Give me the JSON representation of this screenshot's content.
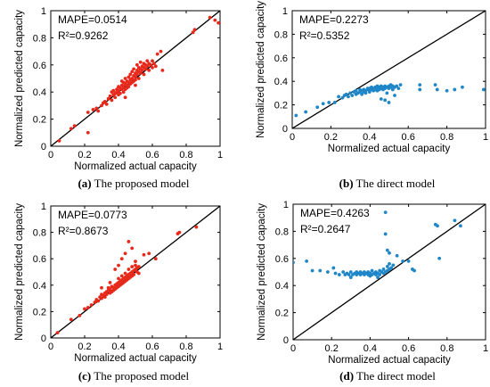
{
  "chart_data": [
    {
      "type": "scatter",
      "caption_letter": "(a)",
      "caption_text": "The proposed model",
      "xlabel": "Normalized actual capacity",
      "ylabel": "Normalized predicted capacity",
      "xlim": [
        0,
        1
      ],
      "ylim": [
        0,
        1
      ],
      "xticks": [
        "0",
        "0.2",
        "0.4",
        "0.6",
        "0.8",
        "1"
      ],
      "yticks": [
        "0",
        "0.2",
        "0.4",
        "0.6",
        "0.8",
        "1"
      ],
      "annotations": [
        "MAPE=0.0514",
        "R²=0.9262"
      ],
      "reference_line": "y = x",
      "grid": false,
      "colors": {
        "points": "#e8281a",
        "line": "#000000"
      },
      "points": [
        [
          0.05,
          0.04
        ],
        [
          0.12,
          0.13
        ],
        [
          0.14,
          0.15
        ],
        [
          0.22,
          0.1
        ],
        [
          0.22,
          0.25
        ],
        [
          0.25,
          0.27
        ],
        [
          0.27,
          0.28
        ],
        [
          0.28,
          0.26
        ],
        [
          0.3,
          0.3
        ],
        [
          0.31,
          0.32
        ],
        [
          0.32,
          0.33
        ],
        [
          0.33,
          0.31
        ],
        [
          0.34,
          0.35
        ],
        [
          0.35,
          0.37
        ],
        [
          0.36,
          0.34
        ],
        [
          0.37,
          0.38
        ],
        [
          0.37,
          0.41
        ],
        [
          0.38,
          0.36
        ],
        [
          0.38,
          0.39
        ],
        [
          0.39,
          0.4
        ],
        [
          0.39,
          0.42
        ],
        [
          0.4,
          0.38
        ],
        [
          0.4,
          0.41
        ],
        [
          0.4,
          0.44
        ],
        [
          0.41,
          0.43
        ],
        [
          0.41,
          0.39
        ],
        [
          0.42,
          0.45
        ],
        [
          0.42,
          0.42
        ],
        [
          0.42,
          0.48
        ],
        [
          0.43,
          0.4
        ],
        [
          0.43,
          0.44
        ],
        [
          0.43,
          0.47
        ],
        [
          0.44,
          0.46
        ],
        [
          0.44,
          0.42
        ],
        [
          0.44,
          0.5
        ],
        [
          0.45,
          0.45
        ],
        [
          0.45,
          0.48
        ],
        [
          0.45,
          0.43
        ],
        [
          0.46,
          0.47
        ],
        [
          0.46,
          0.51
        ],
        [
          0.46,
          0.44
        ],
        [
          0.47,
          0.49
        ],
        [
          0.47,
          0.46
        ],
        [
          0.47,
          0.53
        ],
        [
          0.48,
          0.5
        ],
        [
          0.48,
          0.47
        ],
        [
          0.48,
          0.55
        ],
        [
          0.49,
          0.52
        ],
        [
          0.49,
          0.48
        ],
        [
          0.49,
          0.57
        ],
        [
          0.5,
          0.51
        ],
        [
          0.5,
          0.54
        ],
        [
          0.5,
          0.49
        ],
        [
          0.51,
          0.53
        ],
        [
          0.51,
          0.56
        ],
        [
          0.51,
          0.6
        ],
        [
          0.52,
          0.5
        ],
        [
          0.52,
          0.55
        ],
        [
          0.52,
          0.58
        ],
        [
          0.53,
          0.54
        ],
        [
          0.53,
          0.57
        ],
        [
          0.53,
          0.62
        ],
        [
          0.54,
          0.56
        ],
        [
          0.54,
          0.59
        ],
        [
          0.55,
          0.58
        ],
        [
          0.55,
          0.53
        ],
        [
          0.55,
          0.61
        ],
        [
          0.56,
          0.57
        ],
        [
          0.56,
          0.6
        ],
        [
          0.57,
          0.59
        ],
        [
          0.57,
          0.63
        ],
        [
          0.58,
          0.56
        ],
        [
          0.58,
          0.61
        ],
        [
          0.59,
          0.6
        ],
        [
          0.6,
          0.58
        ],
        [
          0.6,
          0.63
        ],
        [
          0.61,
          0.61
        ],
        [
          0.62,
          0.59
        ],
        [
          0.44,
          0.36
        ],
        [
          0.5,
          0.45
        ],
        [
          0.36,
          0.4
        ],
        [
          0.63,
          0.68
        ],
        [
          0.65,
          0.7
        ],
        [
          0.66,
          0.56
        ],
        [
          0.84,
          0.84
        ],
        [
          0.85,
          0.86
        ],
        [
          0.94,
          0.95
        ],
        [
          0.99,
          0.91
        ],
        [
          0.97,
          0.93
        ]
      ]
    },
    {
      "type": "scatter",
      "caption_letter": "(b)",
      "caption_text": "The direct model",
      "xlabel": "Normalized actual capacity",
      "ylabel": "Normalized predicted capacity",
      "xlim": [
        0,
        1
      ],
      "ylim": [
        0,
        1
      ],
      "xticks": [
        "0",
        "0.2",
        "0.4",
        "0.6",
        "0.8",
        "1"
      ],
      "yticks": [
        "0",
        "0.2",
        "0.4",
        "0.6",
        "0.8",
        "1"
      ],
      "annotations": [
        "MAPE=0.2273",
        "R²=0.5352"
      ],
      "reference_line": "y = x",
      "grid": false,
      "colors": {
        "points": "#1f86c8",
        "line": "#000000"
      },
      "points": [
        [
          0.02,
          0.11
        ],
        [
          0.07,
          0.14
        ],
        [
          0.13,
          0.18
        ],
        [
          0.16,
          0.21
        ],
        [
          0.19,
          0.22
        ],
        [
          0.22,
          0.22
        ],
        [
          0.24,
          0.27
        ],
        [
          0.26,
          0.26
        ],
        [
          0.27,
          0.28
        ],
        [
          0.28,
          0.29
        ],
        [
          0.29,
          0.27
        ],
        [
          0.3,
          0.3
        ],
        [
          0.31,
          0.28
        ],
        [
          0.32,
          0.31
        ],
        [
          0.33,
          0.29
        ],
        [
          0.33,
          0.32
        ],
        [
          0.34,
          0.3
        ],
        [
          0.35,
          0.31
        ],
        [
          0.35,
          0.33
        ],
        [
          0.36,
          0.29
        ],
        [
          0.36,
          0.32
        ],
        [
          0.37,
          0.31
        ],
        [
          0.37,
          0.33
        ],
        [
          0.38,
          0.32
        ],
        [
          0.38,
          0.3
        ],
        [
          0.39,
          0.33
        ],
        [
          0.39,
          0.34
        ],
        [
          0.4,
          0.32
        ],
        [
          0.4,
          0.31
        ],
        [
          0.4,
          0.34
        ],
        [
          0.41,
          0.33
        ],
        [
          0.41,
          0.35
        ],
        [
          0.42,
          0.32
        ],
        [
          0.42,
          0.34
        ],
        [
          0.43,
          0.33
        ],
        [
          0.43,
          0.35
        ],
        [
          0.44,
          0.34
        ],
        [
          0.44,
          0.36
        ],
        [
          0.44,
          0.32
        ],
        [
          0.45,
          0.33
        ],
        [
          0.45,
          0.35
        ],
        [
          0.46,
          0.34
        ],
        [
          0.46,
          0.36
        ],
        [
          0.47,
          0.33
        ],
        [
          0.47,
          0.35
        ],
        [
          0.48,
          0.34
        ],
        [
          0.48,
          0.36
        ],
        [
          0.49,
          0.35
        ],
        [
          0.49,
          0.3
        ],
        [
          0.5,
          0.36
        ],
        [
          0.5,
          0.34
        ],
        [
          0.51,
          0.35
        ],
        [
          0.51,
          0.37
        ],
        [
          0.52,
          0.36
        ],
        [
          0.52,
          0.33
        ],
        [
          0.53,
          0.35
        ],
        [
          0.54,
          0.36
        ],
        [
          0.55,
          0.34
        ],
        [
          0.56,
          0.37
        ],
        [
          0.46,
          0.25
        ],
        [
          0.48,
          0.24
        ],
        [
          0.5,
          0.22
        ],
        [
          0.53,
          0.28
        ],
        [
          0.66,
          0.37
        ],
        [
          0.66,
          0.33
        ],
        [
          0.74,
          0.37
        ],
        [
          0.75,
          0.33
        ],
        [
          0.8,
          0.32
        ],
        [
          0.84,
          0.33
        ],
        [
          0.88,
          0.35
        ],
        [
          0.99,
          0.33
        ]
      ]
    },
    {
      "type": "scatter",
      "caption_letter": "(c)",
      "caption_text": "The proposed model",
      "xlabel": "Normalized actual capacity",
      "ylabel": "Normalized predicted capacity",
      "xlim": [
        0,
        1
      ],
      "ylim": [
        0,
        1
      ],
      "xticks": [
        "0",
        "0.2",
        "0.4",
        "0.6",
        "0.8",
        "1"
      ],
      "yticks": [
        "0",
        "0.2",
        "0.4",
        "0.6",
        "0.8",
        "1"
      ],
      "annotations": [
        "MAPE=0.0773",
        "R²=0.8673"
      ],
      "reference_line": "y = x",
      "grid": false,
      "colors": {
        "points": "#e8281a",
        "line": "#000000"
      },
      "points": [
        [
          0.04,
          0.04
        ],
        [
          0.12,
          0.14
        ],
        [
          0.17,
          0.17
        ],
        [
          0.2,
          0.22
        ],
        [
          0.22,
          0.23
        ],
        [
          0.24,
          0.25
        ],
        [
          0.26,
          0.27
        ],
        [
          0.27,
          0.29
        ],
        [
          0.28,
          0.28
        ],
        [
          0.29,
          0.31
        ],
        [
          0.3,
          0.3
        ],
        [
          0.3,
          0.33
        ],
        [
          0.31,
          0.32
        ],
        [
          0.32,
          0.34
        ],
        [
          0.32,
          0.31
        ],
        [
          0.33,
          0.35
        ],
        [
          0.33,
          0.33
        ],
        [
          0.34,
          0.36
        ],
        [
          0.34,
          0.38
        ],
        [
          0.35,
          0.34
        ],
        [
          0.35,
          0.37
        ],
        [
          0.36,
          0.39
        ],
        [
          0.36,
          0.35
        ],
        [
          0.37,
          0.38
        ],
        [
          0.37,
          0.36
        ],
        [
          0.38,
          0.4
        ],
        [
          0.38,
          0.37
        ],
        [
          0.39,
          0.41
        ],
        [
          0.39,
          0.38
        ],
        [
          0.4,
          0.42
        ],
        [
          0.4,
          0.39
        ],
        [
          0.4,
          0.45
        ],
        [
          0.41,
          0.4
        ],
        [
          0.41,
          0.43
        ],
        [
          0.42,
          0.44
        ],
        [
          0.42,
          0.41
        ],
        [
          0.42,
          0.47
        ],
        [
          0.43,
          0.45
        ],
        [
          0.43,
          0.42
        ],
        [
          0.44,
          0.46
        ],
        [
          0.44,
          0.43
        ],
        [
          0.44,
          0.49
        ],
        [
          0.45,
          0.47
        ],
        [
          0.45,
          0.44
        ],
        [
          0.46,
          0.48
        ],
        [
          0.46,
          0.45
        ],
        [
          0.46,
          0.52
        ],
        [
          0.47,
          0.49
        ],
        [
          0.47,
          0.46
        ],
        [
          0.48,
          0.5
        ],
        [
          0.48,
          0.47
        ],
        [
          0.48,
          0.54
        ],
        [
          0.49,
          0.51
        ],
        [
          0.49,
          0.48
        ],
        [
          0.5,
          0.52
        ],
        [
          0.5,
          0.55
        ],
        [
          0.51,
          0.53
        ],
        [
          0.51,
          0.5
        ],
        [
          0.52,
          0.54
        ],
        [
          0.52,
          0.49
        ],
        [
          0.3,
          0.38
        ],
        [
          0.35,
          0.42
        ],
        [
          0.38,
          0.52
        ],
        [
          0.4,
          0.55
        ],
        [
          0.42,
          0.6
        ],
        [
          0.44,
          0.64
        ],
        [
          0.46,
          0.73
        ],
        [
          0.48,
          0.68
        ],
        [
          0.5,
          0.58
        ],
        [
          0.55,
          0.63
        ],
        [
          0.58,
          0.64
        ],
        [
          0.62,
          0.6
        ],
        [
          0.75,
          0.79
        ],
        [
          0.76,
          0.8
        ],
        [
          0.86,
          0.84
        ]
      ]
    },
    {
      "type": "scatter",
      "caption_letter": "(d)",
      "caption_text": "The direct model",
      "xlabel": "Normalized actual capacity",
      "ylabel": "Normalized predicted capacity",
      "xlim": [
        0,
        1
      ],
      "ylim": [
        0,
        1
      ],
      "xticks": [
        "0",
        "0.2",
        "0.4",
        "0.6",
        "0.8",
        "1"
      ],
      "yticks": [
        "0",
        "0.2",
        "0.4",
        "0.6",
        "0.8",
        "1"
      ],
      "annotations": [
        "MAPE=0.4263",
        "R²=0.2647"
      ],
      "reference_line": "y = x",
      "grid": false,
      "colors": {
        "points": "#1f86c8",
        "line": "#000000"
      },
      "points": [
        [
          0.0,
          0.57
        ],
        [
          0.07,
          0.58
        ],
        [
          0.1,
          0.51
        ],
        [
          0.14,
          0.51
        ],
        [
          0.18,
          0.5
        ],
        [
          0.21,
          0.53
        ],
        [
          0.22,
          0.49
        ],
        [
          0.24,
          0.48
        ],
        [
          0.26,
          0.5
        ],
        [
          0.27,
          0.48
        ],
        [
          0.28,
          0.49
        ],
        [
          0.29,
          0.48
        ],
        [
          0.3,
          0.5
        ],
        [
          0.31,
          0.48
        ],
        [
          0.32,
          0.49
        ],
        [
          0.33,
          0.48
        ],
        [
          0.33,
          0.5
        ],
        [
          0.34,
          0.49
        ],
        [
          0.35,
          0.48
        ],
        [
          0.35,
          0.5
        ],
        [
          0.36,
          0.49
        ],
        [
          0.37,
          0.48
        ],
        [
          0.37,
          0.5
        ],
        [
          0.38,
          0.49
        ],
        [
          0.39,
          0.48
        ],
        [
          0.39,
          0.5
        ],
        [
          0.4,
          0.49
        ],
        [
          0.41,
          0.48
        ],
        [
          0.41,
          0.51
        ],
        [
          0.42,
          0.49
        ],
        [
          0.43,
          0.5
        ],
        [
          0.43,
          0.48
        ],
        [
          0.44,
          0.49
        ],
        [
          0.45,
          0.51
        ],
        [
          0.45,
          0.48
        ],
        [
          0.46,
          0.5
        ],
        [
          0.47,
          0.49
        ],
        [
          0.47,
          0.52
        ],
        [
          0.48,
          0.5
        ],
        [
          0.49,
          0.51
        ],
        [
          0.49,
          0.54
        ],
        [
          0.5,
          0.52
        ],
        [
          0.5,
          0.56
        ],
        [
          0.51,
          0.53
        ],
        [
          0.52,
          0.55
        ],
        [
          0.4,
          0.47
        ],
        [
          0.44,
          0.46
        ],
        [
          0.3,
          0.46
        ],
        [
          0.48,
          0.78
        ],
        [
          0.49,
          0.66
        ],
        [
          0.5,
          0.64
        ],
        [
          0.48,
          0.94
        ],
        [
          0.54,
          0.62
        ],
        [
          0.57,
          0.58
        ],
        [
          0.6,
          0.58
        ],
        [
          0.62,
          0.52
        ],
        [
          0.63,
          0.51
        ],
        [
          0.74,
          0.85
        ],
        [
          0.75,
          0.84
        ],
        [
          0.76,
          0.6
        ],
        [
          0.84,
          0.88
        ],
        [
          0.87,
          0.84
        ]
      ]
    }
  ]
}
